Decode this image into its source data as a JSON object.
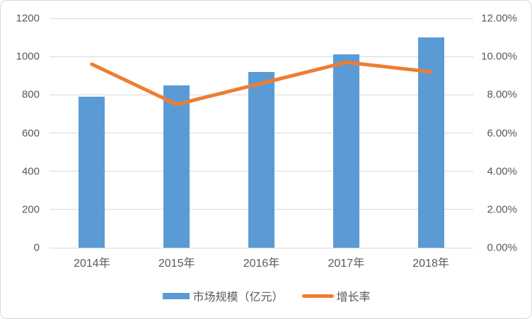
{
  "chart_data": {
    "type": "bar",
    "subtype": "combo-bar-line",
    "title": "",
    "categories": [
      "2014年",
      "2015年",
      "2016年",
      "2017年",
      "2018年"
    ],
    "series": [
      {
        "name": "市场规模（亿元）",
        "type": "bar",
        "axis": "left",
        "values": [
          790,
          850,
          920,
          1010,
          1100
        ],
        "color": "#5B9BD5"
      },
      {
        "name": "增长率",
        "type": "line",
        "axis": "right",
        "values": [
          9.6,
          7.5,
          8.6,
          9.7,
          9.2
        ],
        "unit": "%",
        "color": "#ED7D31"
      }
    ],
    "left_axis": {
      "min": 0,
      "max": 1200,
      "step": 200,
      "tick_labels": [
        "0",
        "200",
        "400",
        "600",
        "800",
        "1000",
        "1200"
      ]
    },
    "right_axis": {
      "min": 0,
      "max": 12,
      "step": 2,
      "tick_labels": [
        "0.00%",
        "2.00%",
        "4.00%",
        "6.00%",
        "8.00%",
        "10.00%",
        "12.00%"
      ]
    },
    "grid": true,
    "legend_position": "bottom"
  },
  "colors": {
    "bar": "#5B9BD5",
    "line": "#ED7D31",
    "gridline": "#D9D9D9",
    "text": "#595959",
    "frame_border": "#D9D9D9",
    "background": "#FFFFFF"
  }
}
